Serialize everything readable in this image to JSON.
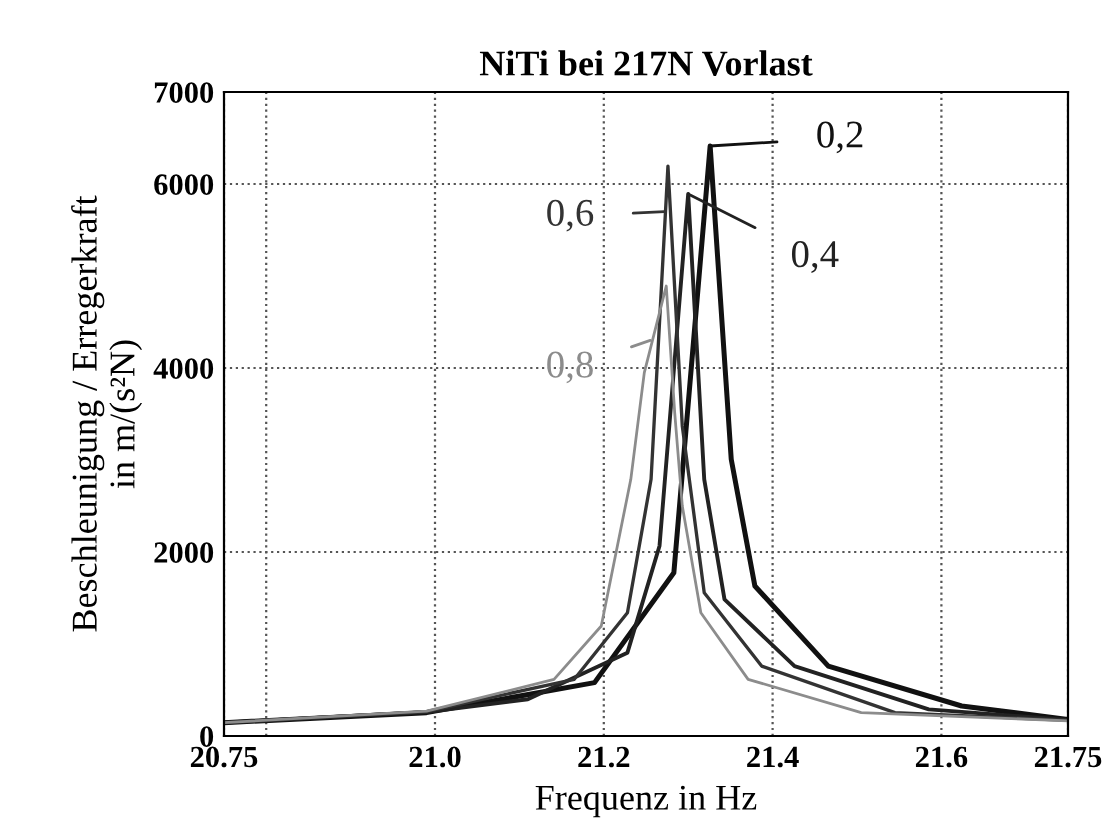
{
  "chart_data": {
    "type": "line",
    "title": "NiTi bei 217N Vorlast",
    "xlabel": "Frequenz in Hz",
    "ylabel": "Beschleunigung / Erregerkraft\nin m/(s²N)",
    "xlim": [
      20.75,
      21.75
    ],
    "xticks": [
      20.75,
      {
        "value": 20.8,
        "label": null
      },
      {
        "value": 21.0,
        "label": "21.0"
      },
      {
        "value": 21.2,
        "label": "21.2"
      },
      {
        "value": 21.4,
        "label": "21.4"
      },
      {
        "value": 21.6,
        "label": "21.6"
      },
      21.75
    ],
    "ylim": [
      0,
      7000
    ],
    "yticks": [
      0,
      2000,
      4000,
      6000,
      {
        "value": 7000,
        "label": "7000"
      }
    ],
    "grid": true,
    "marker": "none",
    "line_style": "solid",
    "series": [
      {
        "color": "#111111",
        "x": [
          20.75,
          20.99,
          21.189,
          21.283,
          21.326,
          21.351,
          21.379,
          21.466,
          21.624,
          21.75
        ],
        "values": [
          145,
          254,
          580,
          1775,
          6413,
          3007,
          1630,
          760,
          326,
          180
        ]
      },
      {
        "color": "#222222",
        "x": [
          20.75,
          20.99,
          21.11,
          21.228,
          21.266,
          21.3,
          21.319,
          21.343,
          21.426,
          21.585,
          21.75
        ],
        "values": [
          145,
          260,
          400,
          906,
          2065,
          5891,
          2790,
          1485,
          760,
          290,
          175
        ]
      },
      {
        "color": "#333333",
        "x": [
          20.75,
          20.99,
          21.165,
          21.228,
          21.256,
          21.276,
          21.293,
          21.319,
          21.387,
          21.545,
          21.75
        ],
        "values": [
          145,
          265,
          616,
          1340,
          2790,
          6195,
          3370,
          1558,
          760,
          254,
          170
        ]
      },
      {
        "color": "#8c8c8c",
        "x": [
          20.75,
          20.99,
          21.141,
          21.197,
          21.232,
          21.248,
          21.274,
          21.284,
          21.293,
          21.315,
          21.371,
          21.505,
          21.75
        ],
        "values": [
          145,
          270,
          616,
          1196,
          2790,
          3949,
          4891,
          3514,
          2500,
          1340,
          616,
          254,
          165
        ]
      }
    ],
    "annotations": [
      {
        "text": "0,2",
        "x": 21.326,
        "y": 6413
      },
      {
        "text": "0,4",
        "x": 21.3,
        "y": 5891
      },
      {
        "text": "0,6",
        "x": 21.272,
        "y": 5700
      },
      {
        "text": "0,8",
        "x": 21.255,
        "y": 4300
      }
    ]
  }
}
